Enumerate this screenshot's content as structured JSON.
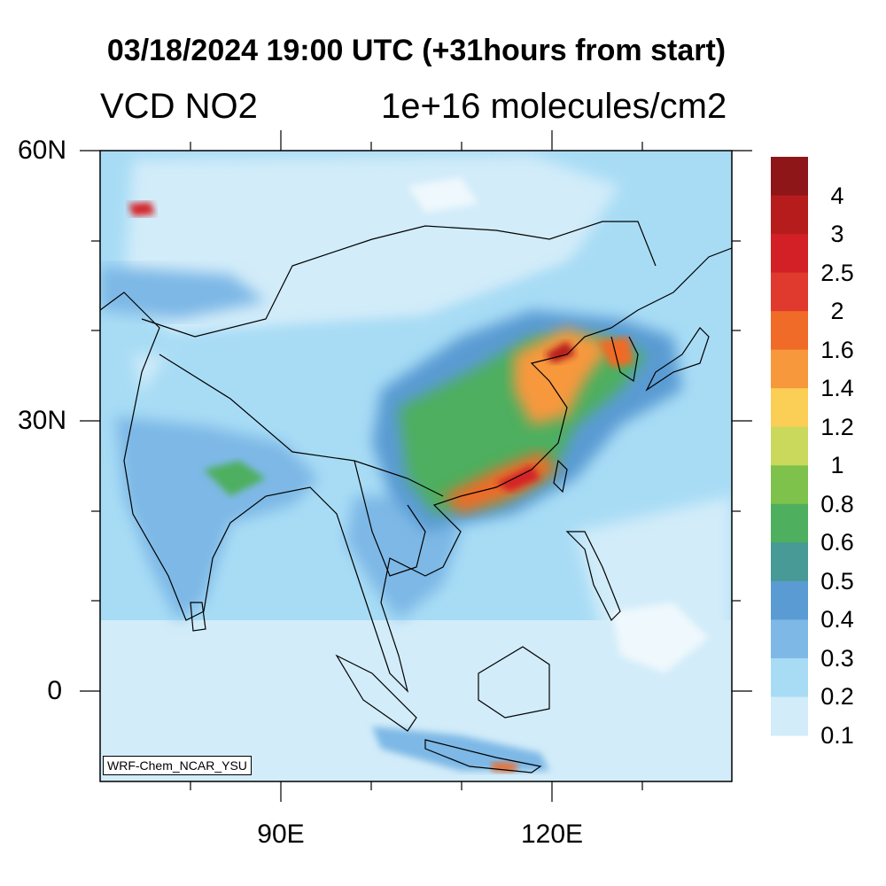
{
  "header": {
    "title": "03/18/2024 19:00 UTC (+31hours from start)",
    "variable": "VCD NO2",
    "units": "1e+16 molecules/cm2"
  },
  "axes": {
    "lat_labels": [
      "60N",
      "30N",
      "0"
    ],
    "lon_labels": [
      "90E",
      "120E"
    ]
  },
  "credit": "WRF-Chem_NCAR_YSU",
  "colorbar": {
    "labels": [
      "4",
      "3",
      "2.5",
      "2",
      "1.6",
      "1.4",
      "1.2",
      "1",
      "0.8",
      "0.6",
      "0.5",
      "0.4",
      "0.3",
      "0.2",
      "0.1"
    ],
    "colors_top_to_bottom": [
      "#8e1518",
      "#b71c1c",
      "#d32027",
      "#e0392e",
      "#f06a28",
      "#f7983c",
      "#fbce55",
      "#cad85c",
      "#7ec24c",
      "#4eaf5f",
      "#479a95",
      "#5a9bd3",
      "#7db8e6",
      "#a8dcf5",
      "#d2ecf9"
    ]
  },
  "map_colors": {
    "ocean": "#d2ecf9",
    "land_low": "#a8dcf5",
    "land_mid": "#7db8e6",
    "land_high": "#5a9bd3",
    "clean": "#eef8fd"
  }
}
